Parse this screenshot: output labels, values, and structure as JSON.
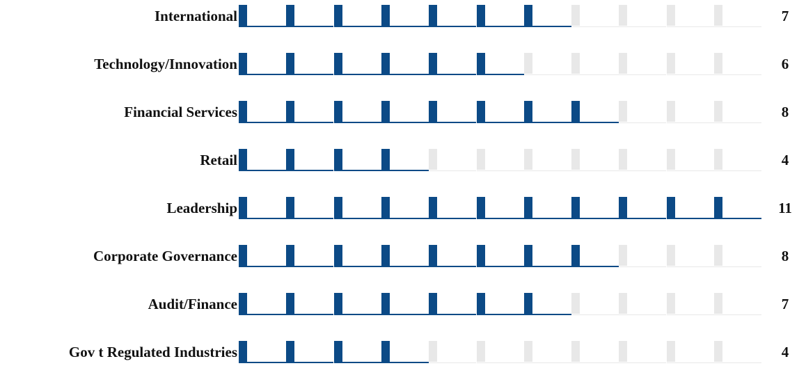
{
  "chart_data": {
    "type": "bar",
    "title": "",
    "xlabel": "",
    "ylabel": "",
    "categories": [
      "International",
      "Technology/Innovation",
      "Financial Services",
      "Retail",
      "Leadership",
      "Corporate Governance",
      "Audit/Finance",
      "Gov  t Regulated Industries"
    ],
    "values": [
      7,
      6,
      8,
      4,
      11,
      8,
      7,
      4
    ],
    "max_units": 11,
    "grid": false,
    "legend": "none",
    "colors": {
      "filled": "#0c4a86",
      "empty": "#e8e8e8",
      "text": "#111111"
    }
  }
}
